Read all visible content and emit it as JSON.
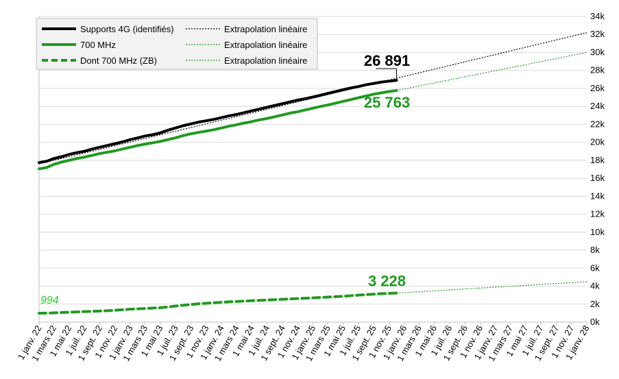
{
  "chart_data": {
    "type": "line",
    "title": "",
    "xlabel": "",
    "ylabel": "",
    "ylim": [
      0,
      34000
    ],
    "y_ticks": [
      "0k",
      "2k",
      "4k",
      "6k",
      "8k",
      "10k",
      "12k",
      "14k",
      "16k",
      "18k",
      "20k",
      "22k",
      "24k",
      "26k",
      "28k",
      "30k",
      "32k",
      "34k"
    ],
    "y_axis_position": "right",
    "xlim": [
      "2022-01-01",
      "2028-01-01"
    ],
    "x_ticks": [
      {
        "date": "2022-01-01",
        "label": "1 janv. 22"
      },
      {
        "date": "2022-03-01",
        "label": "1 mars 22"
      },
      {
        "date": "2022-05-01",
        "label": "1 mai 22"
      },
      {
        "date": "2022-07-01",
        "label": "1 juil. 22"
      },
      {
        "date": "2022-09-01",
        "label": "1 sept. 22"
      },
      {
        "date": "2022-11-01",
        "label": "1 nov. 22"
      },
      {
        "date": "2023-01-01",
        "label": "1 janv. 23"
      },
      {
        "date": "2023-03-01",
        "label": "1 mars 23"
      },
      {
        "date": "2023-05-01",
        "label": "1 mai 23"
      },
      {
        "date": "2023-07-01",
        "label": "1 juil. 23"
      },
      {
        "date": "2023-09-01",
        "label": "1 sept. 23"
      },
      {
        "date": "2023-11-01",
        "label": "1 nov. 23"
      },
      {
        "date": "2024-01-01",
        "label": "1 janv. 24"
      },
      {
        "date": "2024-03-01",
        "label": "1 mars 24"
      },
      {
        "date": "2024-05-01",
        "label": "1 mai 24"
      },
      {
        "date": "2024-07-01",
        "label": "1 juil. 24"
      },
      {
        "date": "2024-09-01",
        "label": "1 sept. 24"
      },
      {
        "date": "2024-11-01",
        "label": "1 nov. 24"
      },
      {
        "date": "2025-01-01",
        "label": "1 janv. 25"
      },
      {
        "date": "2025-03-01",
        "label": "1 mars 25"
      },
      {
        "date": "2025-05-01",
        "label": "1 mai 25"
      },
      {
        "date": "2025-07-01",
        "label": "1 juil. 25"
      },
      {
        "date": "2025-09-01",
        "label": "1 sept. 25"
      },
      {
        "date": "2025-11-01",
        "label": "1 nov. 25"
      },
      {
        "date": "2026-01-01",
        "label": "1 janv. 26"
      },
      {
        "date": "2026-03-01",
        "label": "1 mars 26"
      },
      {
        "date": "2026-05-01",
        "label": "1 mai 26"
      },
      {
        "date": "2026-07-01",
        "label": "1 juil. 26"
      },
      {
        "date": "2026-09-01",
        "label": "1 sept. 26"
      },
      {
        "date": "2026-11-01",
        "label": "1 nov. 26"
      },
      {
        "date": "2027-01-01",
        "label": "1 janv. 27"
      },
      {
        "date": "2027-03-01",
        "label": "1 mars 27"
      },
      {
        "date": "2027-05-01",
        "label": "1 mai 27"
      },
      {
        "date": "2027-07-01",
        "label": "1 juil. 27"
      },
      {
        "date": "2027-09-01",
        "label": "1 sept. 27"
      },
      {
        "date": "2027-11-01",
        "label": "1 nov. 27"
      },
      {
        "date": "2028-01-01",
        "label": "1 janv. 28"
      }
    ],
    "grid": "horizontal",
    "legend_position": "top-left",
    "series": [
      {
        "name": "Supports 4G (identifiés)",
        "color": "#000000",
        "style": "solid",
        "points": [
          [
            "2022-01-01",
            17750
          ],
          [
            "2022-02-01",
            17900
          ],
          [
            "2022-03-01",
            18200
          ],
          [
            "2022-04-01",
            18400
          ],
          [
            "2022-05-01",
            18650
          ],
          [
            "2022-06-01",
            18850
          ],
          [
            "2022-07-01",
            19000
          ],
          [
            "2022-08-01",
            19250
          ],
          [
            "2022-09-01",
            19450
          ],
          [
            "2022-10-01",
            19650
          ],
          [
            "2022-11-01",
            19850
          ],
          [
            "2022-12-01",
            20050
          ],
          [
            "2023-01-01",
            20300
          ],
          [
            "2023-02-01",
            20500
          ],
          [
            "2023-03-01",
            20700
          ],
          [
            "2023-04-01",
            20850
          ],
          [
            "2023-05-01",
            21050
          ],
          [
            "2023-06-01",
            21350
          ],
          [
            "2023-07-01",
            21600
          ],
          [
            "2023-08-01",
            21850
          ],
          [
            "2023-09-01",
            22050
          ],
          [
            "2023-10-01",
            22250
          ],
          [
            "2023-11-01",
            22400
          ],
          [
            "2023-12-01",
            22550
          ],
          [
            "2024-01-01",
            22750
          ],
          [
            "2024-02-01",
            22950
          ],
          [
            "2024-03-01",
            23100
          ],
          [
            "2024-04-01",
            23300
          ],
          [
            "2024-05-01",
            23500
          ],
          [
            "2024-06-01",
            23700
          ],
          [
            "2024-07-01",
            23900
          ],
          [
            "2024-08-01",
            24100
          ],
          [
            "2024-09-01",
            24300
          ],
          [
            "2024-10-01",
            24500
          ],
          [
            "2024-11-01",
            24700
          ],
          [
            "2024-12-01",
            24850
          ],
          [
            "2025-01-01",
            25050
          ],
          [
            "2025-02-01",
            25250
          ],
          [
            "2025-03-01",
            25450
          ],
          [
            "2025-04-01",
            25650
          ],
          [
            "2025-05-01",
            25850
          ],
          [
            "2025-06-01",
            26050
          ],
          [
            "2025-07-01",
            26200
          ],
          [
            "2025-08-01",
            26400
          ],
          [
            "2025-09-01",
            26550
          ],
          [
            "2025-10-01",
            26700
          ],
          [
            "2025-11-01",
            26800
          ],
          [
            "2025-12-01",
            26891
          ]
        ]
      },
      {
        "name": "700 MHz",
        "color": "#1f9a1f",
        "style": "solid",
        "points": [
          [
            "2022-01-01",
            17050
          ],
          [
            "2022-02-01",
            17200
          ],
          [
            "2022-03-01",
            17550
          ],
          [
            "2022-04-01",
            17800
          ],
          [
            "2022-05-01",
            18000
          ],
          [
            "2022-06-01",
            18200
          ],
          [
            "2022-07-01",
            18350
          ],
          [
            "2022-08-01",
            18550
          ],
          [
            "2022-09-01",
            18750
          ],
          [
            "2022-10-01",
            18900
          ],
          [
            "2022-11-01",
            19050
          ],
          [
            "2022-12-01",
            19250
          ],
          [
            "2023-01-01",
            19450
          ],
          [
            "2023-02-01",
            19650
          ],
          [
            "2023-03-01",
            19800
          ],
          [
            "2023-04-01",
            19950
          ],
          [
            "2023-05-01",
            20100
          ],
          [
            "2023-06-01",
            20300
          ],
          [
            "2023-07-01",
            20500
          ],
          [
            "2023-08-01",
            20750
          ],
          [
            "2023-09-01",
            20950
          ],
          [
            "2023-10-01",
            21100
          ],
          [
            "2023-11-01",
            21250
          ],
          [
            "2023-12-01",
            21400
          ],
          [
            "2024-01-01",
            21600
          ],
          [
            "2024-02-01",
            21800
          ],
          [
            "2024-03-01",
            21950
          ],
          [
            "2024-04-01",
            22150
          ],
          [
            "2024-05-01",
            22300
          ],
          [
            "2024-06-01",
            22500
          ],
          [
            "2024-07-01",
            22650
          ],
          [
            "2024-08-01",
            22850
          ],
          [
            "2024-09-01",
            23050
          ],
          [
            "2024-10-01",
            23250
          ],
          [
            "2024-11-01",
            23400
          ],
          [
            "2024-12-01",
            23600
          ],
          [
            "2025-01-01",
            23800
          ],
          [
            "2025-02-01",
            24000
          ],
          [
            "2025-03-01",
            24150
          ],
          [
            "2025-04-01",
            24350
          ],
          [
            "2025-05-01",
            24550
          ],
          [
            "2025-06-01",
            24750
          ],
          [
            "2025-07-01",
            24950
          ],
          [
            "2025-08-01",
            25150
          ],
          [
            "2025-09-01",
            25350
          ],
          [
            "2025-10-01",
            25500
          ],
          [
            "2025-11-01",
            25650
          ],
          [
            "2025-12-01",
            25763
          ]
        ]
      },
      {
        "name": "Dont 700 MHz (ZB)",
        "color": "#1f9a1f",
        "style": "dashed",
        "points": [
          [
            "2022-01-01",
            994
          ],
          [
            "2022-02-01",
            1000
          ],
          [
            "2022-03-01",
            1030
          ],
          [
            "2022-04-01",
            1070
          ],
          [
            "2022-05-01",
            1100
          ],
          [
            "2022-06-01",
            1130
          ],
          [
            "2022-07-01",
            1170
          ],
          [
            "2022-08-01",
            1200
          ],
          [
            "2022-09-01",
            1230
          ],
          [
            "2022-10-01",
            1270
          ],
          [
            "2022-11-01",
            1320
          ],
          [
            "2022-12-01",
            1380
          ],
          [
            "2023-01-01",
            1440
          ],
          [
            "2023-02-01",
            1480
          ],
          [
            "2023-03-01",
            1520
          ],
          [
            "2023-04-01",
            1560
          ],
          [
            "2023-05-01",
            1610
          ],
          [
            "2023-06-01",
            1680
          ],
          [
            "2023-07-01",
            1780
          ],
          [
            "2023-08-01",
            1880
          ],
          [
            "2023-09-01",
            1960
          ],
          [
            "2023-10-01",
            2040
          ],
          [
            "2023-11-01",
            2100
          ],
          [
            "2023-12-01",
            2150
          ],
          [
            "2024-01-01",
            2210
          ],
          [
            "2024-02-01",
            2260
          ],
          [
            "2024-03-01",
            2300
          ],
          [
            "2024-04-01",
            2340
          ],
          [
            "2024-05-01",
            2380
          ],
          [
            "2024-06-01",
            2420
          ],
          [
            "2024-07-01",
            2460
          ],
          [
            "2024-08-01",
            2500
          ],
          [
            "2024-09-01",
            2540
          ],
          [
            "2024-10-01",
            2580
          ],
          [
            "2024-11-01",
            2620
          ],
          [
            "2024-12-01",
            2660
          ],
          [
            "2025-01-01",
            2700
          ],
          [
            "2025-02-01",
            2740
          ],
          [
            "2025-03-01",
            2780
          ],
          [
            "2025-04-01",
            2830
          ],
          [
            "2025-05-01",
            2880
          ],
          [
            "2025-06-01",
            2940
          ],
          [
            "2025-07-01",
            3000
          ],
          [
            "2025-08-01",
            3060
          ],
          [
            "2025-09-01",
            3110
          ],
          [
            "2025-10-01",
            3160
          ],
          [
            "2025-11-01",
            3200
          ],
          [
            "2025-12-01",
            3228
          ]
        ]
      }
    ],
    "extrapolations": [
      {
        "name": "Extrapolation linéaire",
        "of": "Supports 4G (identifiés)",
        "color": "#000000",
        "style": "dotted",
        "points": [
          [
            "2022-01-01",
            17600
          ],
          [
            "2028-01-01",
            32200
          ]
        ]
      },
      {
        "name": "Extrapolation linéaire",
        "of": "700 MHz",
        "color": "#1f9a1f",
        "style": "dotted",
        "points": [
          [
            "2025-12-01",
            25763
          ],
          [
            "2028-01-01",
            30000
          ]
        ]
      },
      {
        "name": "Extrapolation linéaire",
        "of": "Dont 700 MHz (ZB)",
        "color": "#1f9a1f",
        "style": "dotted",
        "points": [
          [
            "2025-12-01",
            3228
          ],
          [
            "2028-01-01",
            4500
          ]
        ]
      }
    ],
    "annotations": [
      {
        "text": "26 891",
        "date": "2025-12-01",
        "value": 26891,
        "color": "#000000",
        "style": "bold"
      },
      {
        "text": "25 763",
        "date": "2025-12-01",
        "value": 25763,
        "color": "#1f9a1f",
        "style": "bold"
      },
      {
        "text": "3 228",
        "date": "2025-12-01",
        "value": 3228,
        "color": "#1f9a1f",
        "style": "bold"
      },
      {
        "text": "994",
        "date": "2022-01-01",
        "value": 994,
        "color": "#33cc33",
        "style": "italic"
      }
    ],
    "legend": [
      {
        "label": "Supports 4G (identifiés)",
        "color": "#000000",
        "style": "solid"
      },
      {
        "label": "Extrapolation linéaire",
        "color": "#000000",
        "style": "dotted"
      },
      {
        "label": "700 MHz",
        "color": "#1f9a1f",
        "style": "solid"
      },
      {
        "label": "Extrapolation linéaire",
        "color": "#1f9a1f",
        "style": "dotted"
      },
      {
        "label": "Dont 700 MHz (ZB)",
        "color": "#1f9a1f",
        "style": "dashed"
      },
      {
        "label": "Extrapolation linéaire",
        "color": "#1f9a1f",
        "style": "dotted"
      }
    ]
  }
}
